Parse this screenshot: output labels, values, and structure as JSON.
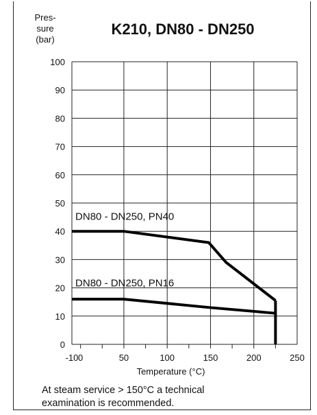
{
  "chart_data": {
    "type": "line",
    "title": "K210, DN80 - DN250",
    "ylabel_lines": [
      "Pres-",
      "sure",
      "(bar)"
    ],
    "xlabel": "Temperature (°C)",
    "xlim": [
      -10,
      250
    ],
    "ylim": [
      0,
      100
    ],
    "x_ticks": [
      -10,
      0,
      50,
      100,
      150,
      200,
      250
    ],
    "y_ticks": [
      0,
      10,
      20,
      30,
      40,
      50,
      60,
      70,
      80,
      90,
      100
    ],
    "grid_x": [
      -10,
      50,
      100,
      150,
      200,
      250
    ],
    "grid": true,
    "series": [
      {
        "name": "DN80 - DN250, PN40",
        "points": [
          [
            -10,
            40
          ],
          [
            50,
            40
          ],
          [
            148,
            36
          ],
          [
            168,
            29
          ],
          [
            225,
            15.5
          ]
        ],
        "label_at": [
          -6,
          44
        ]
      },
      {
        "name": "DN80 - DN250, PN16",
        "points": [
          [
            -10,
            16
          ],
          [
            50,
            16
          ],
          [
            150,
            13
          ],
          [
            225,
            11
          ]
        ],
        "label_at": [
          -6,
          20.5
        ]
      }
    ],
    "vertical_end": {
      "x": 225,
      "y_from": 15.5,
      "y_to": 0
    }
  },
  "note": {
    "line1": "At steam service > 150°C a technical",
    "line2": "examination is recommended."
  }
}
